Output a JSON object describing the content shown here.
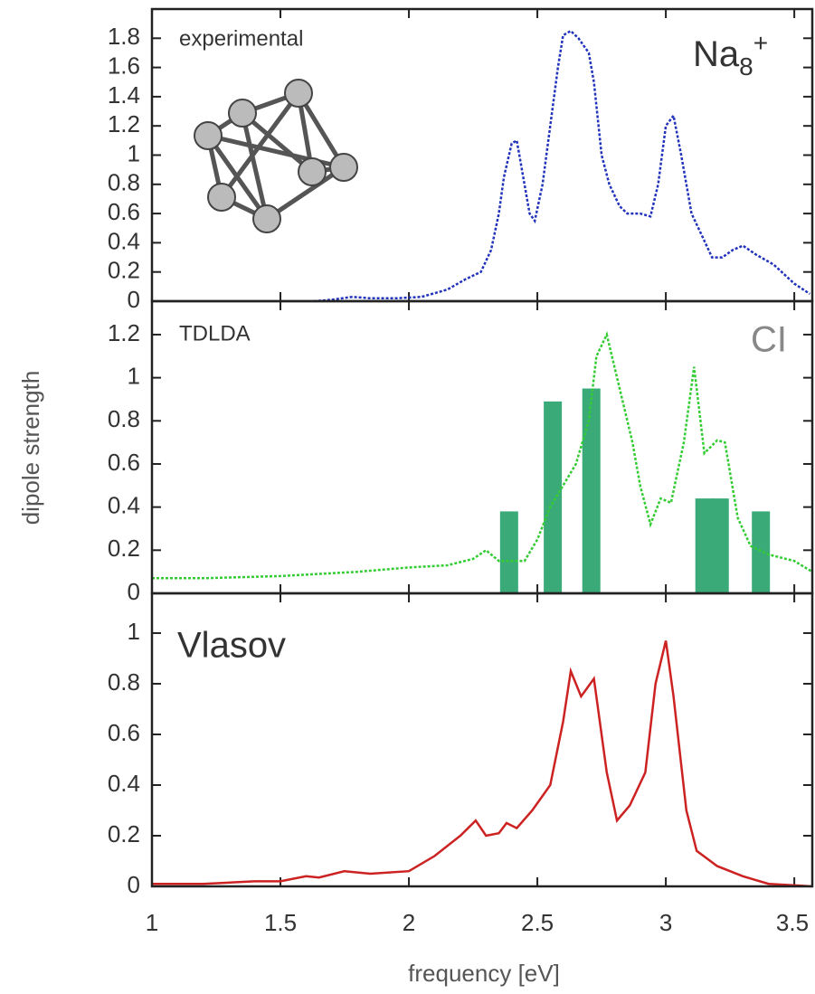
{
  "chart_data": [
    {
      "type": "line",
      "annotation": "experimental",
      "label_parts": [
        "Na",
        "8",
        "+"
      ],
      "ylim": [
        0,
        2
      ],
      "yticks": [
        0,
        0.2,
        0.4,
        0.6,
        0.8,
        1,
        1.2,
        1.4,
        1.6,
        1.8
      ],
      "xlim": [
        1,
        3.57
      ],
      "xticks": [
        1,
        1.5,
        2,
        2.5,
        3,
        3.5
      ],
      "series": [
        {
          "color": "#2233bb",
          "dash": true,
          "x": [
            1.63,
            1.7,
            1.78,
            1.85,
            1.95,
            2.05,
            2.15,
            2.22,
            2.28,
            2.32,
            2.35,
            2.37,
            2.4,
            2.42,
            2.44,
            2.47,
            2.49,
            2.52,
            2.55,
            2.58,
            2.6,
            2.63,
            2.66,
            2.7,
            2.72,
            2.75,
            2.78,
            2.82,
            2.85,
            2.9,
            2.94,
            2.97,
            3.0,
            3.03,
            3.06,
            3.1,
            3.14,
            3.18,
            3.22,
            3.26,
            3.3,
            3.35,
            3.42,
            3.5,
            3.56
          ],
          "values": [
            0,
            0.01,
            0.03,
            0.02,
            0.02,
            0.03,
            0.08,
            0.15,
            0.2,
            0.35,
            0.6,
            0.85,
            1.08,
            1.1,
            0.9,
            0.6,
            0.55,
            0.8,
            1.2,
            1.6,
            1.82,
            1.85,
            1.8,
            1.7,
            1.5,
            1.0,
            0.8,
            0.65,
            0.6,
            0.6,
            0.58,
            0.8,
            1.2,
            1.27,
            1.0,
            0.6,
            0.45,
            0.3,
            0.3,
            0.35,
            0.38,
            0.32,
            0.25,
            0.12,
            0.05
          ]
        }
      ]
    },
    {
      "type": "combo",
      "annotation": "TDLDA",
      "label_ci": "CI",
      "y_label": "dipole strength",
      "ylim": [
        0,
        1.355
      ],
      "yticks": [
        0,
        0.2,
        0.4,
        0.6,
        0.8,
        1,
        1.2
      ],
      "xlim": [
        1,
        3.57
      ],
      "xticks": [
        1,
        1.5,
        2,
        2.5,
        3,
        3.5
      ],
      "series": [
        {
          "color": "#33cc33",
          "dash": true,
          "x": [
            1,
            1.2,
            1.5,
            1.8,
            2.0,
            2.15,
            2.25,
            2.3,
            2.35,
            2.45,
            2.5,
            2.55,
            2.6,
            2.65,
            2.7,
            2.73,
            2.77,
            2.82,
            2.87,
            2.9,
            2.94,
            2.98,
            3.02,
            3.07,
            3.11,
            3.15,
            3.2,
            3.23,
            3.28,
            3.33,
            3.4,
            3.5,
            3.57
          ],
          "values": [
            0.07,
            0.07,
            0.08,
            0.1,
            0.12,
            0.13,
            0.16,
            0.2,
            0.15,
            0.15,
            0.25,
            0.4,
            0.5,
            0.6,
            0.8,
            1.1,
            1.2,
            0.95,
            0.7,
            0.5,
            0.32,
            0.44,
            0.42,
            0.7,
            1.05,
            0.65,
            0.71,
            0.7,
            0.35,
            0.22,
            0.18,
            0.15,
            0.1
          ]
        }
      ],
      "bars": {
        "color": "#3aaa78",
        "x": [
          2.39,
          2.56,
          2.71,
          3.15,
          3.21,
          3.37
        ],
        "values": [
          0.38,
          0.89,
          0.95,
          0.44,
          0.44,
          0.38
        ]
      }
    },
    {
      "type": "line",
      "annotation": "Vlasov",
      "x_label": "frequency [eV]",
      "ylim": [
        0,
        1.157
      ],
      "yticks": [
        0,
        0.2,
        0.4,
        0.6,
        0.8,
        1
      ],
      "xlim": [
        1,
        3.57
      ],
      "xticks": [
        1,
        1.5,
        2,
        2.5,
        3,
        3.5
      ],
      "series": [
        {
          "color": "#cc2222",
          "dash": false,
          "x": [
            1,
            1.2,
            1.4,
            1.5,
            1.6,
            1.65,
            1.75,
            1.85,
            2.0,
            2.1,
            2.2,
            2.26,
            2.3,
            2.35,
            2.38,
            2.42,
            2.48,
            2.55,
            2.6,
            2.63,
            2.67,
            2.72,
            2.77,
            2.81,
            2.86,
            2.92,
            2.96,
            3.0,
            3.03,
            3.08,
            3.12,
            3.2,
            3.3,
            3.4,
            3.57
          ],
          "values": [
            0.01,
            0.01,
            0.02,
            0.02,
            0.04,
            0.035,
            0.06,
            0.05,
            0.06,
            0.12,
            0.2,
            0.26,
            0.2,
            0.21,
            0.25,
            0.23,
            0.3,
            0.4,
            0.65,
            0.85,
            0.75,
            0.82,
            0.45,
            0.26,
            0.32,
            0.45,
            0.8,
            0.97,
            0.75,
            0.3,
            0.14,
            0.08,
            0.04,
            0.01,
            0
          ]
        }
      ]
    }
  ]
}
